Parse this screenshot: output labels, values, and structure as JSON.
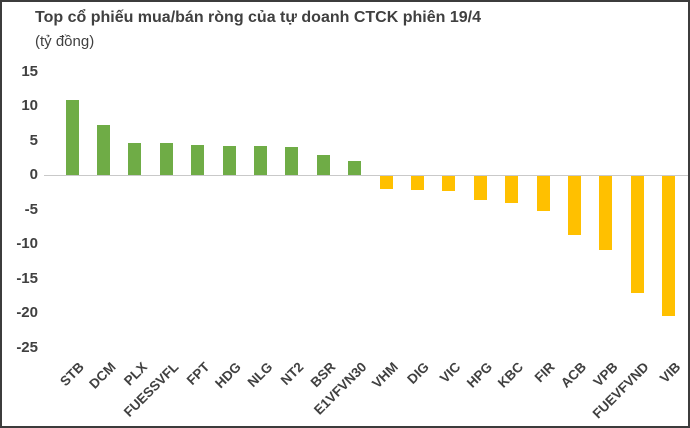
{
  "header": {
    "title": "Top cổ phiếu mua/bán ròng của tự doanh CTCK phiên 19/4",
    "subtitle": "(tỷ đồng)"
  },
  "chart_data": {
    "type": "bar",
    "title": "Top cổ phiếu mua/bán ròng của tự doanh CTCK phiên 19/4",
    "unit_label": "(tỷ đồng)",
    "categories": [
      "STB",
      "DCM",
      "PLX",
      "FUESSVFL",
      "FPT",
      "HDG",
      "NLG",
      "NT2",
      "BSR",
      "E1VFVN30",
      "VHM",
      "DIG",
      "VIC",
      "HPG",
      "KBC",
      "FIR",
      "ACB",
      "VPB",
      "FUEVFVND",
      "VIB"
    ],
    "values": [
      10.9,
      7.2,
      4.7,
      4.6,
      4.4,
      4.2,
      4.2,
      4.0,
      2.9,
      2.1,
      -1.9,
      -2.0,
      -2.2,
      -3.5,
      -3.9,
      -5.1,
      -8.6,
      -10.7,
      -17.0,
      -20.3
    ],
    "y_ticks": [
      15,
      10,
      5,
      0,
      -5,
      -10,
      -15,
      -20,
      -25
    ],
    "ylim": [
      -25,
      15
    ],
    "xlabel": "",
    "ylabel": "",
    "grid": false,
    "legend": false,
    "positive_color": "#6FAC46",
    "negative_color": "#FFC000",
    "axis_line_color": "#C9C9C9",
    "text_color": "#404040"
  }
}
